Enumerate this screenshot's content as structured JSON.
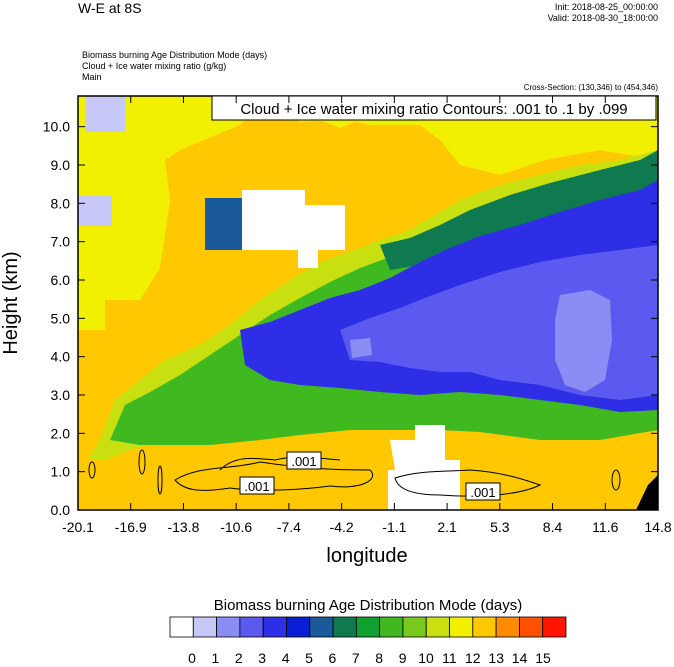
{
  "header": {
    "title": "W-E at 8S",
    "init": "Init: 2018-08-25_00:00:00",
    "valid": "Valid: 2018-08-30_18:00:00",
    "desc_lines": [
      "Biomass burning Age Distribution Mode    (days)",
      "Cloud + Ice water mixing ratio    (g/kg)",
      "Main"
    ],
    "cross_section": "Cross-Section: (130,346) to (454,346)"
  },
  "contour_label": "Cloud + Ice water mixing ratio Contours: .001 to .1 by .099",
  "contour_values": [
    ".001",
    ".001",
    ".001"
  ],
  "colorbar": {
    "title": "Biomass burning Age Distribution Mode  (days)",
    "labels": [
      "0",
      "1",
      "2",
      "3",
      "4",
      "5",
      "6",
      "7",
      "8",
      "9",
      "10",
      "11",
      "12",
      "13",
      "14",
      "15"
    ],
    "colors": [
      "#ffffff",
      "#c8c8f8",
      "#8c8cf5",
      "#5a5af0",
      "#2e2ee6",
      "#0a1ed6",
      "#1a5a9a",
      "#0f7a50",
      "#10a030",
      "#40b820",
      "#78c81e",
      "#c8e010",
      "#f0f000",
      "#ffc800",
      "#ff8c00",
      "#ff5000",
      "#ff1400"
    ]
  },
  "chart_data": {
    "type": "heatmap",
    "xlabel": "longitude",
    "ylabel": "Height (km)",
    "xticks": [
      "-20.1",
      "-16.9",
      "-13.8",
      "-10.6",
      "-7.4",
      "-4.2",
      "-1.1",
      "2.1",
      "5.3",
      "8.4",
      "11.6",
      "14.8"
    ],
    "yticks": [
      "0.0",
      "1.0",
      "2.0",
      "3.0",
      "4.0",
      "5.0",
      "6.0",
      "7.0",
      "8.0",
      "9.0",
      "10.0"
    ],
    "xlim": [
      -20.1,
      14.8
    ],
    "ylim": [
      0,
      10.8
    ],
    "z_range": [
      0,
      15
    ],
    "region_values": [
      {
        "region": "upper-left sky",
        "value": 12
      },
      {
        "region": "lower-left boundary layer",
        "value": 13
      },
      {
        "region": "green transition band",
        "value": 8
      },
      {
        "region": "blue layer 3-6 km east",
        "value": 4
      },
      {
        "region": "light blue core east",
        "value": 2
      },
      {
        "region": "clean white patch near 8 km",
        "value": 0
      },
      {
        "region": "white low patch near 0 lon",
        "value": 0
      }
    ]
  }
}
